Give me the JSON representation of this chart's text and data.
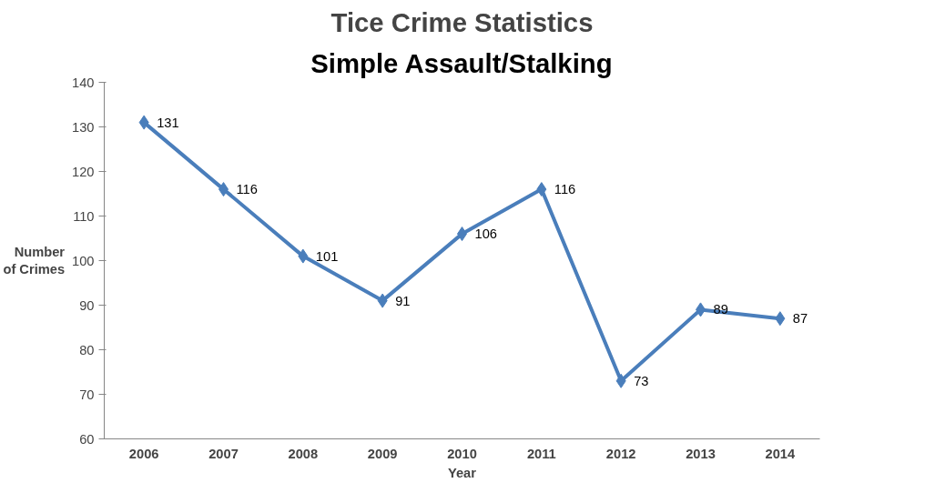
{
  "chart_data": {
    "type": "line",
    "title": "Tice Crime Statistics",
    "subtitle": "Simple Assault/Stalking",
    "xlabel": "Year",
    "ylabel": "Number\nof Crimes",
    "categories": [
      "2006",
      "2007",
      "2008",
      "2009",
      "2010",
      "2011",
      "2012",
      "2013",
      "2014"
    ],
    "series": [
      {
        "color": "#4a7ebb",
        "values": [
          131,
          116,
          101,
          91,
          106,
          116,
          73,
          89,
          87
        ]
      }
    ],
    "ylim": [
      60,
      140
    ],
    "yticks": [
      60,
      70,
      80,
      90,
      100,
      110,
      120,
      130,
      140
    ],
    "grid": false,
    "marker": "diamond",
    "line_style": "solid",
    "data_labels": true
  }
}
